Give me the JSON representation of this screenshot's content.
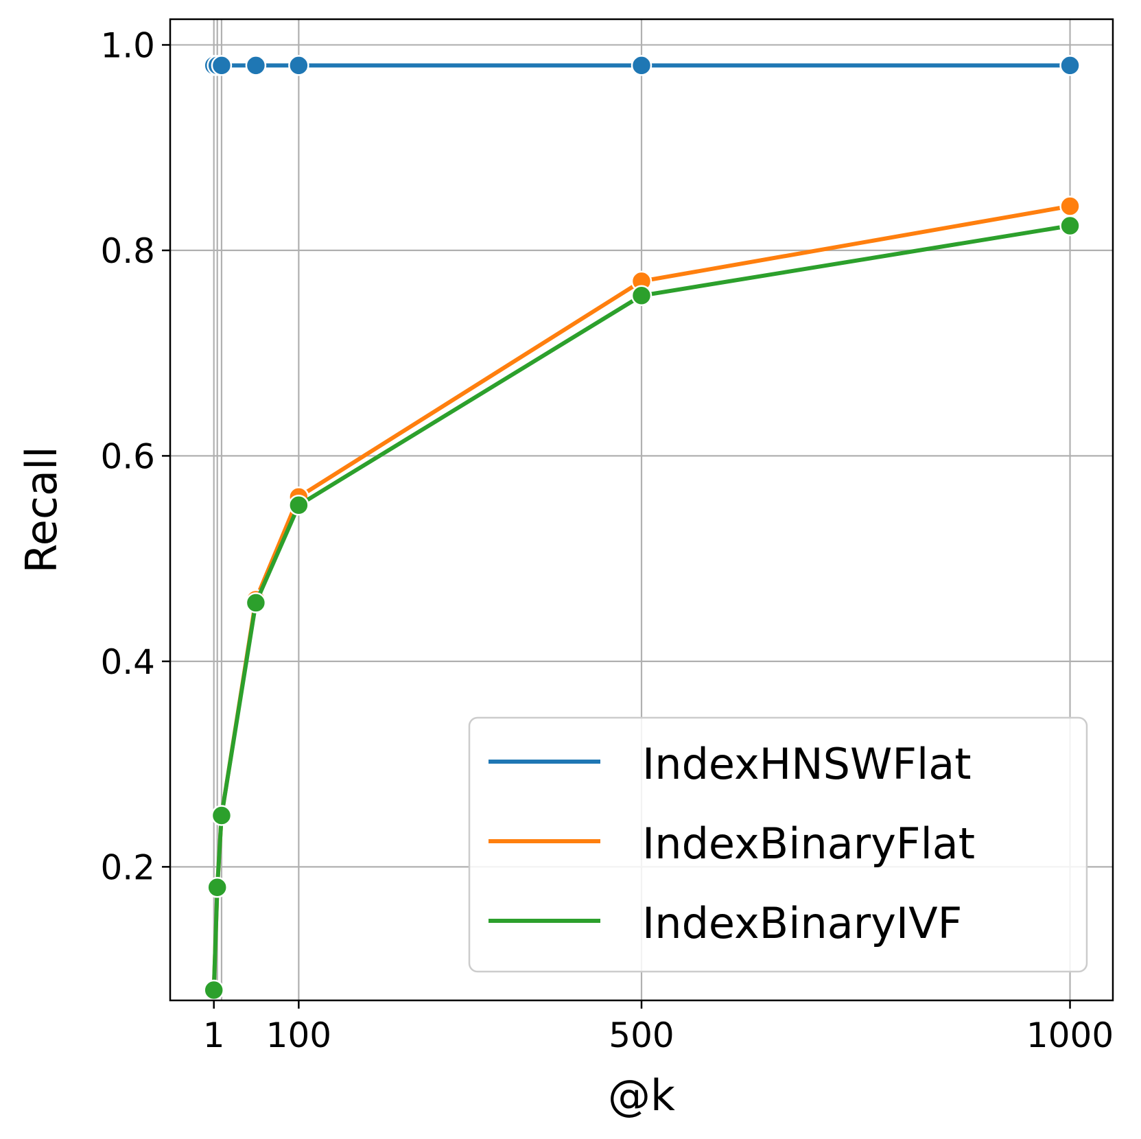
{
  "chart_data": {
    "type": "line",
    "xlabel": "@k",
    "ylabel": "Recall",
    "xlim": [
      -50,
      1050
    ],
    "ylim": [
      0.07,
      1.025
    ],
    "x_ticks": [
      1,
      100,
      500,
      1000
    ],
    "x_tick_labels": [
      "1",
      "100",
      "500",
      "1000"
    ],
    "x_minor_grid": [
      5,
      10
    ],
    "y_ticks": [
      0.2,
      0.4,
      0.6,
      0.8,
      1.0
    ],
    "y_tick_labels": [
      "0.2",
      "0.4",
      "0.6",
      "0.8",
      "1.0"
    ],
    "grid": true,
    "legend_position": "lower-right",
    "x": [
      1,
      5,
      10,
      50,
      100,
      500,
      1000
    ],
    "series": [
      {
        "name": "IndexHNSWFlat",
        "color": "#1f77b4",
        "values": [
          0.98,
          0.98,
          0.98,
          0.98,
          0.98,
          0.98,
          0.98
        ]
      },
      {
        "name": "IndexBinaryFlat",
        "color": "#ff7f0e",
        "values": [
          0.08,
          0.18,
          0.25,
          0.46,
          0.56,
          0.77,
          0.843
        ]
      },
      {
        "name": "IndexBinaryIVF",
        "color": "#2ca02c",
        "values": [
          0.08,
          0.18,
          0.25,
          0.457,
          0.552,
          0.756,
          0.824
        ]
      }
    ]
  }
}
